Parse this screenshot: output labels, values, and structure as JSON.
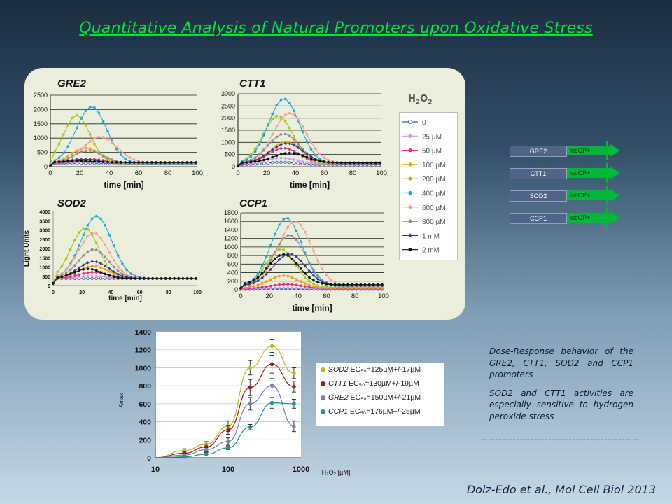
{
  "slide": {
    "title": "Quantitative Analysis of Natural Promoters upon Oxidative Stress",
    "citation": "Dolz-Edo et al., Mol Cell Biol 2013",
    "description": [
      "Dose-Response behavior of the GRE2, CTT1, SOD2 and CCP1 promoters",
      "SOD2 and CTT1 activities are especially sensitive to hydrogen peroxide stress"
    ],
    "colors": {
      "title": "#00e33c",
      "panel": "#eaeedb",
      "promoter_box": "#4f6487",
      "luc_box": "#00b73b"
    }
  },
  "legend": {
    "title": "H2O2",
    "entries": [
      {
        "label": "0",
        "color": "#3a58b0",
        "marker": "open-circle"
      },
      {
        "label": "25 µM",
        "color": "#c8a0e0",
        "marker": "circle"
      },
      {
        "label": "50 µM",
        "color": "#e02a8c",
        "marker": "circle"
      },
      {
        "label": "100 µM",
        "color": "#f39c12",
        "marker": "circle"
      },
      {
        "label": "200 µM",
        "color": "#a8c416",
        "marker": "circle"
      },
      {
        "label": "400 µM",
        "color": "#1ea8e0",
        "marker": "circle"
      },
      {
        "label": "600 µM",
        "color": "#f4a09a",
        "marker": "circle"
      },
      {
        "label": "800 µM",
        "color": "#8e8e8e",
        "marker": "circle"
      },
      {
        "label": "1 mM",
        "color": "#3a3a8c",
        "marker": "diamond"
      },
      {
        "label": "2 mM",
        "color": "#111111",
        "marker": "circle"
      }
    ]
  },
  "constructs": [
    {
      "promoter": "GRE2",
      "reporter": "lucCP+"
    },
    {
      "promoter": "CTT1",
      "reporter": "lucCP+"
    },
    {
      "promoter": "SOD2",
      "reporter": "lucCP+"
    },
    {
      "promoter": "CCP1",
      "reporter": "lucCP+"
    }
  ],
  "ec50_legend": [
    {
      "gene": "SOD2",
      "text": " EC₅₀=125µM+/-17µM",
      "color": "#a8c416"
    },
    {
      "gene": "CTT1",
      "text": " EC₅₀=130µM+/-19µM",
      "color": "#a01818"
    },
    {
      "gene": "GRE2",
      "text": " EC₅₀=150µM+/-21µM",
      "color": "#7c7cb4"
    },
    {
      "gene": "CCP1",
      "text": " EC₅₀=176µM+/-25µM",
      "color": "#1a9690"
    }
  ],
  "chart_data": [
    {
      "type": "line",
      "panel_label": "GRE2",
      "xlabel": "time [min]",
      "ylabel": "",
      "xlim": [
        0,
        100
      ],
      "ylim": [
        0,
        2500
      ],
      "xticks": [
        0,
        20,
        40,
        60,
        80,
        100
      ],
      "yticks": [
        0,
        500,
        1000,
        1500,
        2000,
        2500
      ],
      "grid": "horizontal",
      "series": [
        {
          "peak": 120,
          "peak_x": 24,
          "base": 100
        },
        {
          "peak": 180,
          "peak_x": 26,
          "base": 110
        },
        {
          "peak": 260,
          "peak_x": 28,
          "base": 120
        },
        {
          "peak": 650,
          "peak_x": 24,
          "base": 120
        },
        {
          "peak": 1800,
          "peak_x": 18,
          "base": 120
        },
        {
          "peak": 2100,
          "peak_x": 28,
          "base": 110
        },
        {
          "peak": 1050,
          "peak_x": 34,
          "base": 130
        },
        {
          "peak": 560,
          "peak_x": 26,
          "base": 120
        },
        {
          "peak": 260,
          "peak_x": 22,
          "base": 140
        },
        {
          "peak": 200,
          "peak_x": 20,
          "base": 150
        }
      ]
    },
    {
      "type": "line",
      "panel_label": "CTT1",
      "xlabel": "time [min]",
      "ylabel": "",
      "xlim": [
        0,
        100
      ],
      "ylim": [
        0,
        3000
      ],
      "xticks": [
        0,
        20,
        40,
        60,
        80,
        100
      ],
      "yticks": [
        0,
        500,
        1000,
        1500,
        2000,
        2500,
        3000
      ],
      "grid": "horizontal",
      "series": [
        {
          "peak": 180,
          "peak_x": 30,
          "base": 80
        },
        {
          "peak": 360,
          "peak_x": 30,
          "base": 120
        },
        {
          "peak": 760,
          "peak_x": 32,
          "base": 120
        },
        {
          "peak": 1020,
          "peak_x": 34,
          "base": 150
        },
        {
          "peak": 2100,
          "peak_x": 28,
          "base": 130
        },
        {
          "peak": 2800,
          "peak_x": 32,
          "base": 130
        },
        {
          "peak": 2200,
          "peak_x": 36,
          "base": 140
        },
        {
          "peak": 1350,
          "peak_x": 32,
          "base": 140
        },
        {
          "peak": 960,
          "peak_x": 34,
          "base": 150
        },
        {
          "peak": 560,
          "peak_x": 36,
          "base": 160
        }
      ]
    },
    {
      "type": "line",
      "panel_label": "SOD2",
      "xlabel": "time [min]",
      "ylabel": "Light Units",
      "xlim": [
        0,
        100
      ],
      "ylim": [
        0,
        4000
      ],
      "xticks": [
        0,
        20,
        40,
        60,
        80,
        100
      ],
      "yticks": [
        0,
        500,
        1000,
        1500,
        2000,
        2500,
        3000,
        3500,
        4000
      ],
      "grid": "none",
      "series": [
        {
          "peak": 380,
          "peak_x": 26,
          "base": 380
        },
        {
          "peak": 520,
          "peak_x": 26,
          "base": 380
        },
        {
          "peak": 720,
          "peak_x": 28,
          "base": 380
        },
        {
          "peak": 1050,
          "peak_x": 28,
          "base": 380
        },
        {
          "peak": 3100,
          "peak_x": 22,
          "base": 380
        },
        {
          "peak": 3750,
          "peak_x": 30,
          "base": 380
        },
        {
          "peak": 2850,
          "peak_x": 28,
          "base": 380
        },
        {
          "peak": 1950,
          "peak_x": 28,
          "base": 380
        },
        {
          "peak": 1300,
          "peak_x": 28,
          "base": 380
        },
        {
          "peak": 900,
          "peak_x": 24,
          "base": 380
        }
      ]
    },
    {
      "type": "line",
      "panel_label": "CCP1",
      "xlabel": "time [min]",
      "ylabel": "",
      "xlim": [
        0,
        100
      ],
      "ylim": [
        0,
        1800
      ],
      "xticks": [
        0,
        20,
        40,
        60,
        80,
        100
      ],
      "yticks": [
        0,
        200,
        400,
        600,
        800,
        1000,
        1200,
        1400,
        1600,
        1800
      ],
      "grid": "horizontal",
      "series": [
        {
          "peak": 20,
          "peak_x": 30,
          "base": 10
        },
        {
          "peak": 40,
          "peak_x": 30,
          "base": 20
        },
        {
          "peak": 130,
          "peak_x": 32,
          "base": 30
        },
        {
          "peak": 330,
          "peak_x": 30,
          "base": 40
        },
        {
          "peak": 950,
          "peak_x": 28,
          "base": 60
        },
        {
          "peak": 1680,
          "peak_x": 32,
          "base": 80
        },
        {
          "peak": 1600,
          "peak_x": 38,
          "base": 80
        },
        {
          "peak": 1280,
          "peak_x": 34,
          "base": 90
        },
        {
          "peak": 840,
          "peak_x": 34,
          "base": 100
        },
        {
          "peak": 830,
          "peak_x": 30,
          "base": 120
        }
      ]
    },
    {
      "type": "line",
      "panel_label": "",
      "xlabel": "H₂O₂ [µM]",
      "ylabel": "Amax",
      "xscale": "log",
      "xlim": [
        10,
        1000
      ],
      "ylim": [
        0,
        1400
      ],
      "xticks": [
        10,
        100,
        1000
      ],
      "yticks": [
        0,
        200,
        400,
        600,
        800,
        1000,
        1200,
        1400
      ],
      "grid": "horizontal",
      "x": [
        25,
        50,
        100,
        200,
        400,
        800
      ],
      "series": [
        {
          "name": "SOD2",
          "values": [
            80,
            150,
            350,
            1000,
            1240,
            940
          ],
          "errors": [
            20,
            30,
            60,
            80,
            70,
            60
          ]
        },
        {
          "name": "CTT1",
          "values": [
            50,
            120,
            310,
            780,
            1040,
            790
          ],
          "errors": [
            20,
            30,
            50,
            90,
            100,
            60
          ]
        },
        {
          "name": "GRE2",
          "values": [
            30,
            90,
            180,
            600,
            800,
            350
          ],
          "errors": [
            15,
            25,
            40,
            70,
            80,
            60
          ]
        },
        {
          "name": "CCP1",
          "values": [
            10,
            40,
            110,
            340,
            610,
            600
          ],
          "errors": [
            10,
            20,
            20,
            30,
            60,
            50
          ]
        }
      ]
    }
  ]
}
